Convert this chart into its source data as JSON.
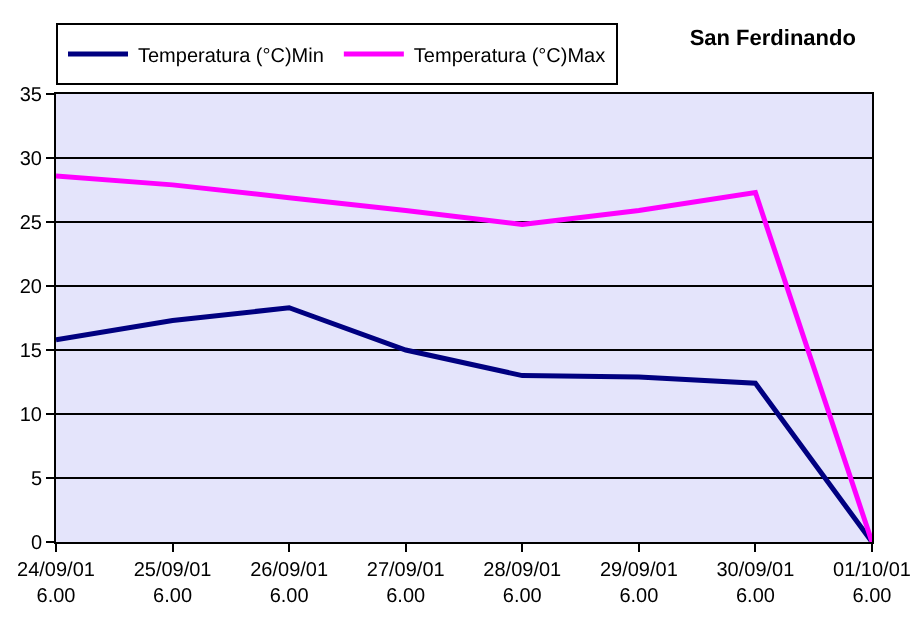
{
  "chart_data": {
    "type": "line",
    "title": "San Ferdinando",
    "categories": [
      "24/09/01\n6.00",
      "25/09/01\n6.00",
      "26/09/01\n6.00",
      "27/09/01\n6.00",
      "28/09/01\n6.00",
      "29/09/01\n6.00",
      "30/09/01\n6.00",
      "01/10/01\n6.00"
    ],
    "series": [
      {
        "name": "Temperatura (°C)Min",
        "color": "#000080",
        "values": [
          15.8,
          17.3,
          18.3,
          15.0,
          13.0,
          12.9,
          12.4,
          0
        ]
      },
      {
        "name": "Temperatura (°C)Max",
        "color": "#ff00ff",
        "values": [
          28.6,
          27.9,
          26.9,
          25.9,
          24.8,
          25.9,
          27.3,
          0
        ]
      }
    ],
    "ylim": [
      0,
      35
    ],
    "yticks": [
      0,
      5,
      10,
      15,
      20,
      25,
      30,
      35
    ],
    "grid": "y",
    "legend": "top",
    "marker": "none",
    "line_style": "solid"
  }
}
